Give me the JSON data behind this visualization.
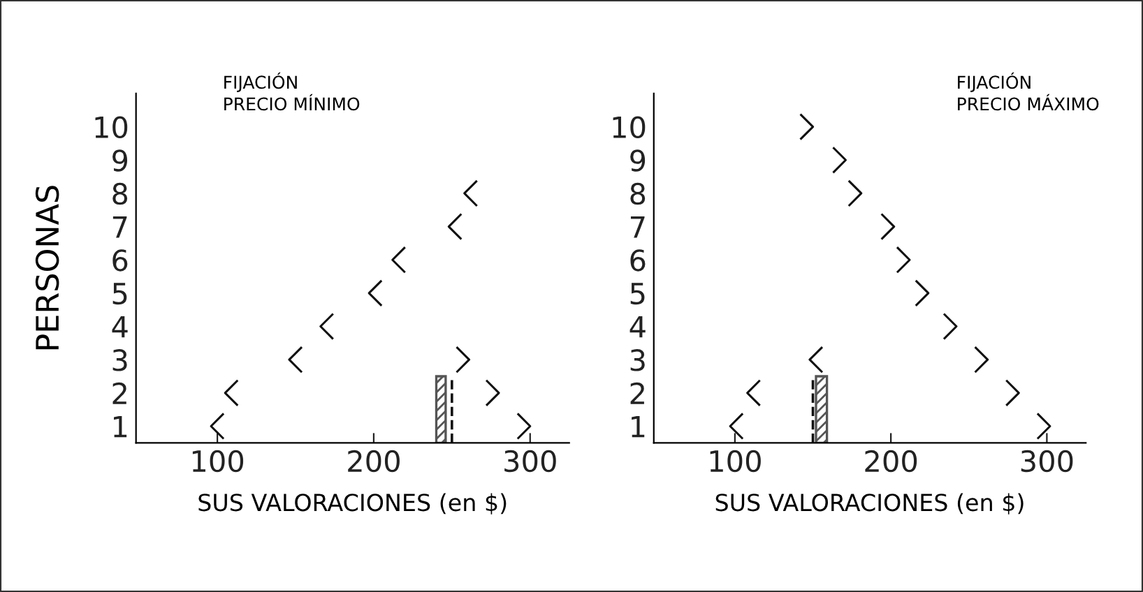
{
  "chart_data": [
    {
      "type": "scatter",
      "title": "FIJACIÓN",
      "subtitle": "PRECIO MÍNIMO",
      "xlabel": "SUS VALORACIONES (en $)",
      "ylabel": "PERSONAS",
      "xlim": [
        48,
        325
      ],
      "xticks": [
        100,
        200,
        300
      ],
      "ylim": [
        0.5,
        11
      ],
      "yticks": [
        1,
        2,
        3,
        4,
        5,
        6,
        7,
        8,
        9,
        10
      ],
      "series": [
        {
          "marker": "cross",
          "color": "#111111",
          "x": [
            100,
            109,
            150,
            170,
            201,
            216,
            252,
            262
          ],
          "values": [
            1,
            2,
            3,
            4,
            5,
            6,
            7,
            8
          ]
        },
        {
          "marker": "cross",
          "color": "#111111",
          "x": [
            296,
            276,
            257
          ],
          "values": [
            1,
            2,
            3
          ]
        }
      ],
      "bands": [
        {
          "axis": "x",
          "from": 240,
          "to": 246,
          "color": "#555555"
        }
      ],
      "ref_lines": [
        {
          "axis": "x",
          "value": 250,
          "line_style": "dashed",
          "color": "#111111"
        }
      ],
      "grid": false,
      "legend": false
    },
    {
      "type": "scatter",
      "title": "FIJACIÓN",
      "subtitle": "PRECIO MÁXIMO",
      "xlabel": "SUS VALORACIONES (en $)",
      "xlim": [
        48,
        325
      ],
      "xticks": [
        100,
        200,
        300
      ],
      "ylim": [
        0.5,
        11
      ],
      "yticks": [
        1,
        2,
        3,
        4,
        5,
        6,
        7,
        8,
        9,
        10
      ],
      "series": [
        {
          "marker": "cross",
          "color": "#111111",
          "x": [
            101,
            112,
            152
          ],
          "values": [
            1,
            2,
            3
          ]
        },
        {
          "marker": "cross",
          "color": "#111111",
          "x": [
            298,
            278,
            258,
            238,
            220,
            208,
            198,
            177,
            167,
            146
          ],
          "values": [
            1,
            2,
            3,
            4,
            5,
            6,
            7,
            8,
            9,
            10
          ]
        }
      ],
      "bands": [
        {
          "axis": "x",
          "from": 152,
          "to": 159,
          "color": "#555555"
        }
      ],
      "ref_lines": [
        {
          "axis": "x",
          "value": 150,
          "line_style": "dashed",
          "color": "#111111"
        }
      ],
      "grid": false,
      "legend": false
    }
  ]
}
